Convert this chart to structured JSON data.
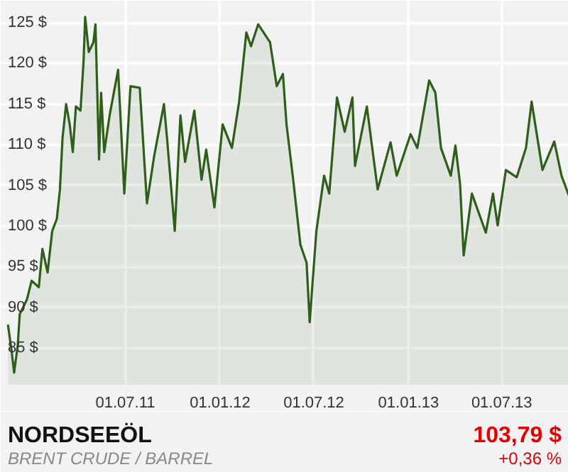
{
  "chart_data": {
    "type": "area",
    "title": "NORDSEEÖL",
    "subtitle": "BRENT CRUDE / BARREL",
    "annotations": [
      "103,79 $",
      "+0,36 %"
    ],
    "x": [
      "2010-11-15",
      "2010-11-22",
      "2010-11-27",
      "2010-12-04",
      "2010-12-08",
      "2010-12-22",
      "2010-12-31",
      "2011-01-14",
      "2011-01-21",
      "2011-01-31",
      "2011-02-09",
      "2011-02-18",
      "2011-02-24",
      "2011-03-01",
      "2011-03-08",
      "2011-03-15",
      "2011-03-21",
      "2011-03-27",
      "2011-04-05",
      "2011-04-11",
      "2011-04-14",
      "2011-04-21",
      "2011-04-30",
      "2011-05-04",
      "2011-05-11",
      "2011-05-15",
      "2011-05-21",
      "2011-06-01",
      "2011-06-17",
      "2011-06-29",
      "2011-07-11",
      "2011-07-29",
      "2011-08-12",
      "2011-08-26",
      "2011-09-14",
      "2011-09-20",
      "2011-10-05",
      "2011-10-16",
      "2011-10-25",
      "2011-11-12",
      "2011-11-26",
      "2011-12-05",
      "2011-12-21",
      "2012-01-06",
      "2012-01-24",
      "2012-02-07",
      "2012-02-21",
      "2012-03-01",
      "2012-03-15",
      "2012-04-07",
      "2012-04-20",
      "2012-05-02",
      "2012-05-09",
      "2012-05-22",
      "2012-06-05",
      "2012-06-17",
      "2012-06-23",
      "2012-07-06",
      "2012-07-21",
      "2012-07-31",
      "2012-08-15",
      "2012-08-30",
      "2012-09-14",
      "2012-09-19",
      "2012-10-12",
      "2012-11-02",
      "2012-11-27",
      "2012-12-09",
      "2013-01-05",
      "2013-01-18",
      "2013-02-10",
      "2013-02-22",
      "2013-03-05",
      "2013-03-24",
      "2013-04-02",
      "2013-04-11",
      "2013-04-18",
      "2013-05-04",
      "2013-05-31",
      "2013-06-14",
      "2013-06-23",
      "2013-07-09",
      "2013-07-30",
      "2013-08-17",
      "2013-08-28",
      "2013-09-18",
      "2013-10-11",
      "2013-10-25",
      "2013-11-08"
    ],
    "series": [
      {
        "color": "#2e5e1a",
        "values": [
          87.9,
          84.8,
          82.0,
          85.3,
          89.2,
          91.0,
          93.3,
          92.5,
          97.2,
          94.3,
          99.4,
          100.9,
          104.5,
          110.8,
          115.0,
          112.5,
          109.1,
          114.7,
          114.2,
          120.4,
          125.7,
          121.4,
          122.6,
          124.8,
          108.2,
          116.4,
          109.1,
          113.8,
          119.2,
          104.0,
          117.2,
          117.0,
          102.8,
          108.6,
          115.0,
          110.8,
          99.4,
          113.6,
          107.9,
          114.2,
          105.7,
          109.4,
          102.3,
          112.5,
          109.6,
          115.3,
          123.8,
          122.1,
          124.8,
          122.6,
          117.2,
          118.7,
          112.5,
          105.7,
          97.7,
          95.5,
          88.2,
          99.4,
          106.2,
          104.0,
          115.8,
          111.6,
          115.8,
          107.4,
          114.7,
          104.5,
          110.3,
          106.2,
          111.3,
          109.6,
          117.9,
          116.4,
          109.6,
          106.2,
          109.9,
          105.2,
          96.4,
          104.0,
          99.2,
          104.0,
          100.1,
          106.9,
          106.0,
          109.6,
          115.3,
          106.9,
          110.4,
          106.2,
          103.8
        ]
      }
    ],
    "xlim": [
      "2010-11-01",
      "2013-11-08"
    ],
    "ylim": [
      80.5,
      127.7
    ],
    "xticks": [
      {
        "value": "2011-07-01",
        "label": "01.07.11"
      },
      {
        "value": "2012-01-01",
        "label": "01.01.12"
      },
      {
        "value": "2012-07-01",
        "label": "01.07.12"
      },
      {
        "value": "2013-01-01",
        "label": "01.01.13"
      },
      {
        "value": "2013-07-01",
        "label": "01.07.13"
      }
    ],
    "yticks": [
      {
        "value": 85,
        "label": "85 $"
      },
      {
        "value": 90,
        "label": "90 $"
      },
      {
        "value": 95,
        "label": "95 $"
      },
      {
        "value": 100,
        "label": "100 $"
      },
      {
        "value": 105,
        "label": "105 $"
      },
      {
        "value": 110,
        "label": "110 $"
      },
      {
        "value": 115,
        "label": "115 $"
      },
      {
        "value": 120,
        "label": "120 $"
      },
      {
        "value": 125,
        "label": "125 $"
      }
    ],
    "grid": true
  }
}
